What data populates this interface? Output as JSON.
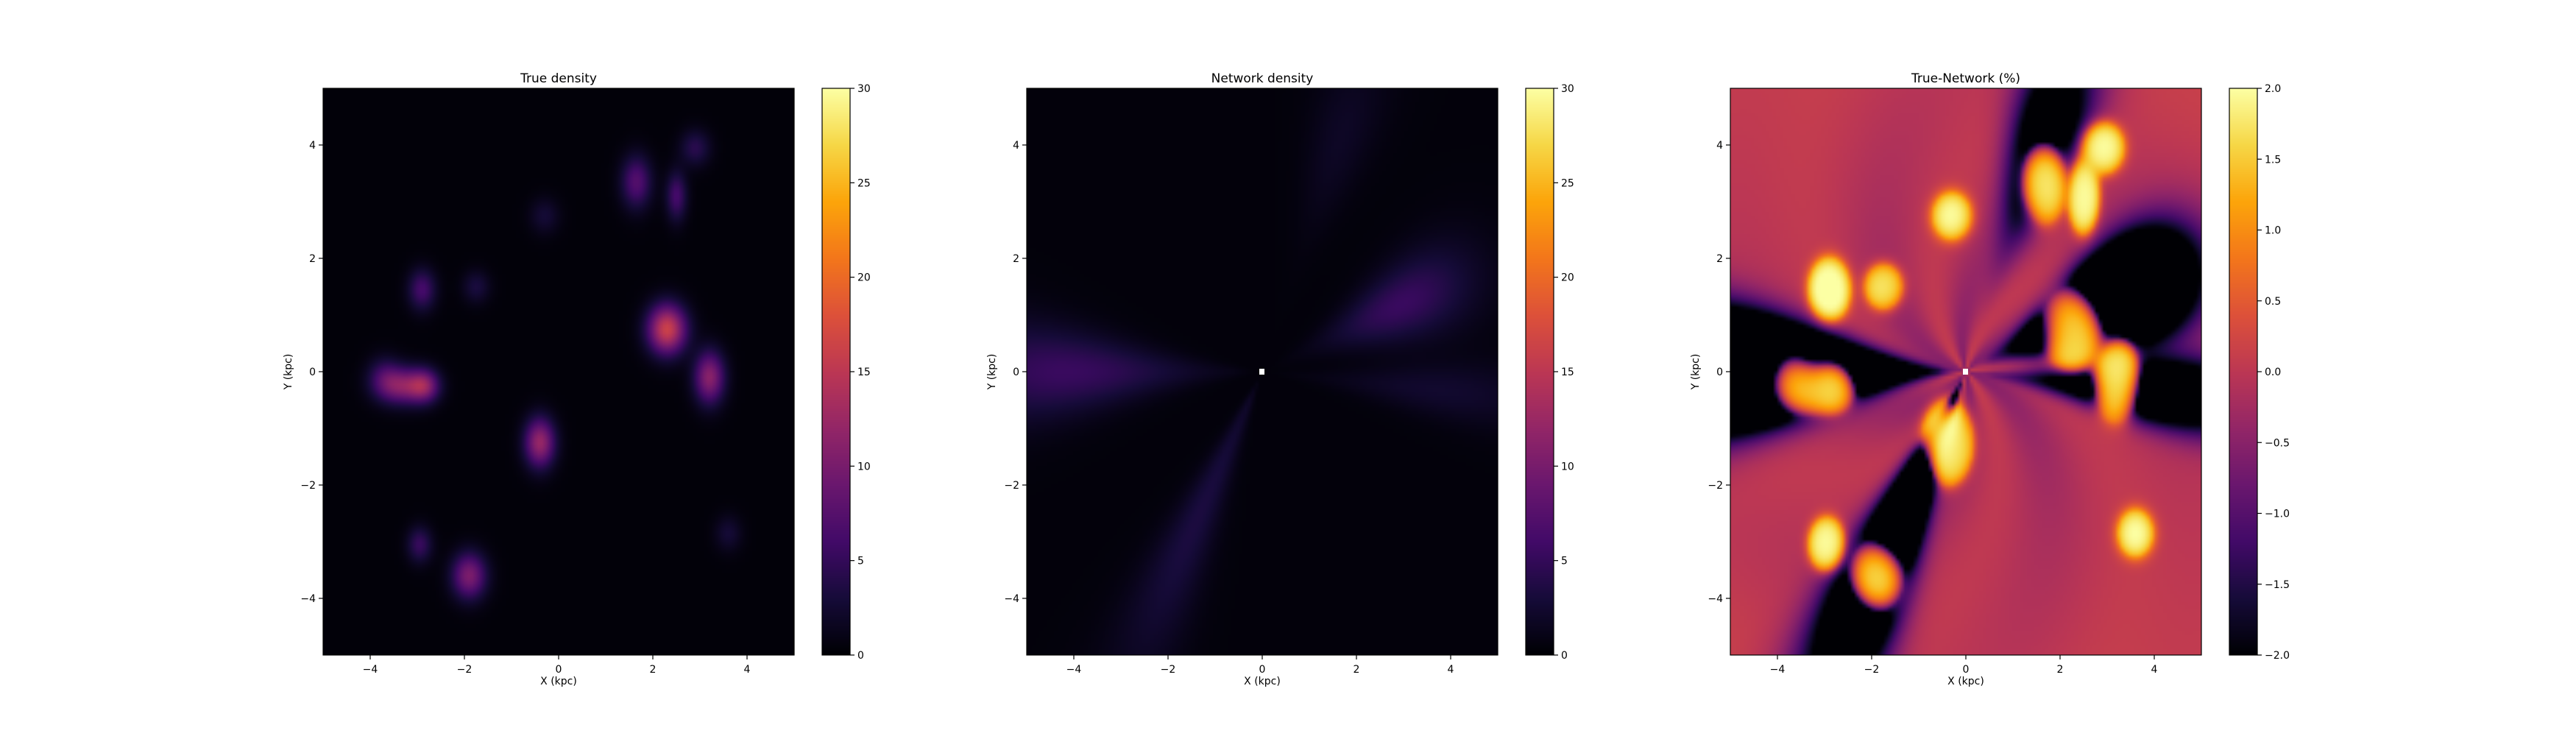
{
  "chart_data": [
    {
      "type": "heatmap",
      "title": "True density",
      "xlabel": "X (kpc)",
      "ylabel": "Y (kpc)",
      "xlim": [
        -5,
        5
      ],
      "ylim": [
        -5,
        5
      ],
      "xticks": [
        -4,
        -2,
        0,
        2,
        4
      ],
      "yticks": [
        -4,
        -2,
        0,
        2,
        4
      ],
      "colormap": "inferno",
      "colorbar": {
        "min": 0,
        "max": 30,
        "ticks": [
          0,
          5,
          10,
          15,
          20,
          25,
          30
        ]
      },
      "background_level": 0.3,
      "blobs": [
        {
          "x": -3.7,
          "y": -0.1,
          "sx": 0.25,
          "sy": 0.25,
          "amp": 4.5
        },
        {
          "x": -3.3,
          "y": -0.25,
          "sx": 0.35,
          "sy": 0.22,
          "amp": 10
        },
        {
          "x": -2.85,
          "y": -0.25,
          "sx": 0.22,
          "sy": 0.2,
          "amp": 9
        },
        {
          "x": -2.9,
          "y": 1.45,
          "sx": 0.2,
          "sy": 0.25,
          "amp": 6
        },
        {
          "x": -1.75,
          "y": 1.5,
          "sx": 0.2,
          "sy": 0.2,
          "amp": 3
        },
        {
          "x": -0.4,
          "y": -1.25,
          "sx": 0.22,
          "sy": 0.3,
          "amp": 12
        },
        {
          "x": -0.3,
          "y": 2.75,
          "sx": 0.22,
          "sy": 0.22,
          "amp": 2.5
        },
        {
          "x": 1.65,
          "y": 3.35,
          "sx": 0.22,
          "sy": 0.32,
          "amp": 7
        },
        {
          "x": 2.5,
          "y": 3.1,
          "sx": 0.15,
          "sy": 0.3,
          "amp": 6
        },
        {
          "x": 2.9,
          "y": 3.95,
          "sx": 0.22,
          "sy": 0.22,
          "amp": 4
        },
        {
          "x": 2.3,
          "y": 0.75,
          "sx": 0.28,
          "sy": 0.3,
          "amp": 16
        },
        {
          "x": 3.2,
          "y": -0.1,
          "sx": 0.22,
          "sy": 0.32,
          "amp": 11
        },
        {
          "x": 3.6,
          "y": -2.85,
          "sx": 0.2,
          "sy": 0.22,
          "amp": 2.5
        },
        {
          "x": -2.95,
          "y": -3.05,
          "sx": 0.18,
          "sy": 0.22,
          "amp": 5
        },
        {
          "x": -1.9,
          "y": -3.6,
          "sx": 0.25,
          "sy": 0.28,
          "amp": 10
        }
      ]
    },
    {
      "type": "heatmap",
      "title": "Network density",
      "xlabel": "X (kpc)",
      "ylabel": "Y (kpc)",
      "xlim": [
        -5,
        5
      ],
      "ylim": [
        -5,
        5
      ],
      "xticks": [
        -4,
        -2,
        0,
        2,
        4
      ],
      "yticks": [
        -4,
        -2,
        0,
        2,
        4
      ],
      "colormap": "inferno",
      "colorbar": {
        "min": 0,
        "max": 30,
        "ticks": [
          0,
          5,
          10,
          15,
          20,
          25,
          30
        ]
      },
      "background_level": 0.4,
      "center_marker": {
        "x": 0,
        "y": 0
      },
      "streaks": [
        {
          "angle_deg": 180,
          "center_r": 4.2,
          "radial_sigma": 1.8,
          "angular_sigma_deg": 7,
          "amp": 5
        },
        {
          "angle_deg": 22,
          "center_r": 3.2,
          "radial_sigma": 1.1,
          "angular_sigma_deg": 8,
          "amp": 5
        },
        {
          "angle_deg": -5,
          "center_r": 3.8,
          "radial_sigma": 1.6,
          "angular_sigma_deg": 5,
          "amp": 2
        },
        {
          "angle_deg": -118,
          "center_r": 3.0,
          "radial_sigma": 2.2,
          "angular_sigma_deg": 6,
          "amp": 3
        },
        {
          "angle_deg": 68,
          "center_r": 4.5,
          "radial_sigma": 1.2,
          "angular_sigma_deg": 6,
          "amp": 1.5
        }
      ]
    },
    {
      "type": "heatmap",
      "title": "True-Network (%)",
      "xlabel": "X (kpc)",
      "ylabel": "Y (kpc)",
      "xlim": [
        -5,
        5
      ],
      "ylim": [
        -5,
        5
      ],
      "xticks": [
        -4,
        -2,
        0,
        2,
        4
      ],
      "yticks": [
        -4,
        -2,
        0,
        2,
        4
      ],
      "colormap": "inferno",
      "colorbar": {
        "min": -2.0,
        "max": 2.0,
        "ticks": [
          -2.0,
          -1.5,
          -1.0,
          -0.5,
          0.0,
          0.5,
          1.0,
          1.5,
          2.0
        ]
      },
      "center_marker": {
        "x": 0,
        "y": 0
      }
    }
  ]
}
